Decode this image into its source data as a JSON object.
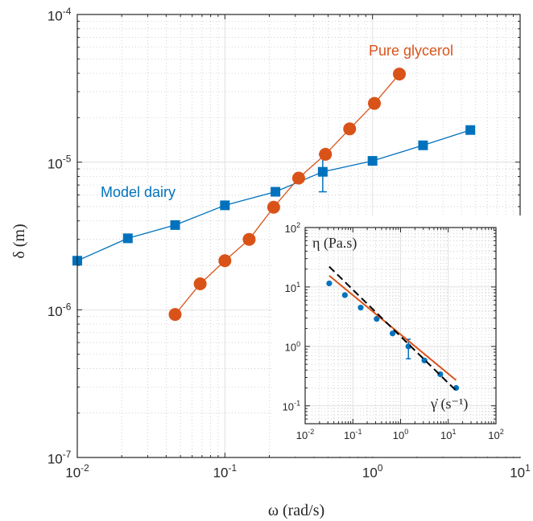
{
  "chart_data": [
    {
      "type": "scatter",
      "x_scale": "log",
      "y_scale": "log",
      "xlim": [
        0.01,
        10
      ],
      "ylim": [
        1e-07,
        0.0001
      ],
      "grid": true,
      "minor_grid": true,
      "xlabel": "ω (rad/s)",
      "ylabel": "δ (m)",
      "x_ticks": [
        {
          "value": 0.01,
          "base": "10",
          "exp": "-2"
        },
        {
          "value": 0.1,
          "base": "10",
          "exp": "-1"
        },
        {
          "value": 1,
          "base": "10",
          "exp": "0"
        },
        {
          "value": 10,
          "base": "10",
          "exp": "1"
        }
      ],
      "y_ticks": [
        {
          "value": 1e-07,
          "base": "10",
          "exp": "-7"
        },
        {
          "value": 1e-06,
          "base": "10",
          "exp": "-6"
        },
        {
          "value": 1e-05,
          "base": "10",
          "exp": "-5"
        },
        {
          "value": 0.0001,
          "base": "10",
          "exp": "-4"
        }
      ],
      "series": [
        {
          "name": "Model dairy",
          "color": "#0072BD",
          "marker": "square",
          "x": [
            0.01,
            0.022,
            0.046,
            0.1,
            0.22,
            0.46,
            1.0,
            2.2,
            4.6
          ],
          "y": [
            2.15e-06,
            3.05e-06,
            3.75e-06,
            5.1e-06,
            6.3e-06,
            8.6e-06,
            1.02e-05,
            1.3e-05,
            1.65e-05
          ],
          "error_bars": [
            {
              "x": 0.46,
              "low": 6.3e-06,
              "high": 1.13e-05
            },
            {
              "x": 1.0,
              "low": 9.6e-06,
              "high": 1.08e-05
            }
          ]
        },
        {
          "name": "Pure glycerol",
          "color": "#D95319",
          "marker": "circle",
          "x": [
            0.046,
            0.068,
            0.1,
            0.146,
            0.214,
            0.316,
            0.48,
            0.7,
            1.03,
            1.52
          ],
          "y": [
            9.3e-07,
            1.5e-06,
            2.15e-06,
            3e-06,
            4.95e-06,
            7.8e-06,
            1.13e-05,
            1.68e-05,
            2.5e-05,
            3.95e-05
          ]
        }
      ],
      "annotations": [
        {
          "text": "Model dairy",
          "color": "#0072BD"
        },
        {
          "text": "Pure glycerol",
          "color": "#D95319"
        }
      ]
    },
    {
      "type": "scatter",
      "inset": true,
      "x_scale": "log",
      "y_scale": "log",
      "xlim": [
        0.01,
        100
      ],
      "ylim": [
        0.05,
        100
      ],
      "grid": true,
      "x_ticks": [
        {
          "value": 0.01,
          "base": "10",
          "exp": "-2"
        },
        {
          "value": 0.1,
          "base": "10",
          "exp": "-1"
        },
        {
          "value": 1,
          "base": "10",
          "exp": "0"
        },
        {
          "value": 10,
          "base": "10",
          "exp": "1"
        },
        {
          "value": 100,
          "base": "10",
          "exp": "2"
        }
      ],
      "y_ticks": [
        {
          "value": 0.1,
          "base": "10",
          "exp": "-1"
        },
        {
          "value": 1,
          "base": "10",
          "exp": "0"
        },
        {
          "value": 10,
          "base": "10",
          "exp": "1"
        },
        {
          "value": 100,
          "base": "10",
          "exp": "2"
        }
      ],
      "ylabel": "η (Pa.s)",
      "xlabel": "γ̇ (s⁻¹)",
      "series": [
        {
          "color": "#0072BD",
          "marker": "dot",
          "x": [
            0.032,
            0.068,
            0.146,
            0.316,
            0.68,
            1.46,
            3.16,
            6.8,
            14.6
          ],
          "y": [
            11.5,
            7.3,
            4.5,
            2.9,
            1.65,
            1.0,
            0.58,
            0.34,
            0.2
          ],
          "error_bars": [
            {
              "x": 1.46,
              "low": 0.62,
              "high": 1.32
            }
          ]
        },
        {
          "color": "#D95319",
          "style": "solid",
          "x": [
            0.032,
            14.6
          ],
          "y": [
            15.5,
            0.27
          ]
        },
        {
          "color": "#000000",
          "style": "dashed",
          "x": [
            0.032,
            14.6
          ],
          "y": [
            22.0,
            0.18
          ]
        }
      ]
    }
  ]
}
